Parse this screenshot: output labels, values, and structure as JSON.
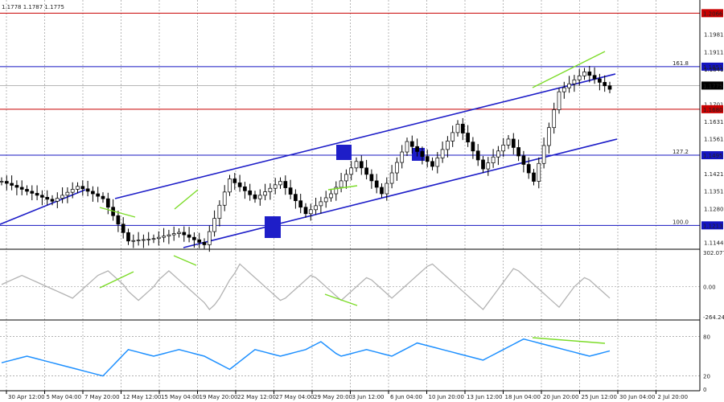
{
  "header": {
    "ohlc_text": "1.1778 1.1787 1.1775"
  },
  "colors": {
    "background": "#ffffff",
    "candles": "#000000",
    "channel": "#1e1ec8",
    "level_blue": "#1515c0",
    "level_red": "#c80000",
    "divergence": "#7ddc2a",
    "cci_line": "#b3b3b3",
    "rsi_line": "#1e90ff",
    "grid": "#9a9a9a"
  },
  "chart_data": [
    {
      "type": "candlestick",
      "instrument": "",
      "price_axis": {
        "ticks": [
          "1.2066",
          "1.1981",
          "1.1911",
          "1.1851",
          "1.1841",
          "1.1775",
          "1.1701",
          "1.1680",
          "1.1631",
          "1.1561",
          "1.1495",
          "1.1421",
          "1.1351",
          "1.1280",
          "1.1213",
          "1.1144"
        ],
        "range": [
          1.113,
          1.2106
        ]
      },
      "time_axis": {
        "ticks": [
          "30 Apr 12:00",
          "5 May 04:00",
          "7 May 20:00",
          "12 May 12:00",
          "15 May 04:00",
          "19 May 20:00",
          "22 May 12:00",
          "27 May 04:00",
          "29 May 20:00",
          "3 Jun 12:00",
          "6 Jun 04:00",
          "10 Jun 20:00",
          "13 Jun 12:00",
          "18 Jun 04:00",
          "20 Jun 20:00",
          "25 Jun 12:00",
          "30 Jun 04:00",
          "2 Jul 20:00"
        ]
      },
      "levels": [
        {
          "price": 1.2066,
          "label": "1.2066",
          "tag": "",
          "color": "red"
        },
        {
          "price": 1.1851,
          "label": "1.1851",
          "tag": "161.8",
          "color": "blue"
        },
        {
          "price": 1.1775,
          "label": "1.1775",
          "tag": "",
          "color": "current"
        },
        {
          "price": 1.168,
          "label": "1.1680",
          "tag": "",
          "color": "red"
        },
        {
          "price": 1.1495,
          "label": "1.1495",
          "tag": "127.2",
          "color": "blue"
        },
        {
          "price": 1.1213,
          "label": "1.1213",
          "tag": "100.0",
          "color": "blue"
        }
      ],
      "series_close": [
        1.139,
        1.1382,
        1.1374,
        1.1366,
        1.1358,
        1.135,
        1.1342,
        1.1334,
        1.1326,
        1.1318,
        1.131,
        1.1322,
        1.1334,
        1.1346,
        1.1358,
        1.137,
        1.136,
        1.135,
        1.134,
        1.133,
        1.132,
        1.1286,
        1.1252,
        1.1218,
        1.1184,
        1.115,
        1.1152,
        1.1154,
        1.1156,
        1.1158,
        1.116,
        1.1165,
        1.117,
        1.1175,
        1.118,
        1.1185,
        1.1175,
        1.1165,
        1.1155,
        1.1145,
        1.1135,
        1.1188,
        1.1241,
        1.1294,
        1.1347,
        1.14,
        1.1384,
        1.1368,
        1.1352,
        1.1336,
        1.132,
        1.1334,
        1.1348,
        1.1362,
        1.1376,
        1.139,
        1.1364,
        1.1338,
        1.1312,
        1.1286,
        1.126,
        1.1276,
        1.1292,
        1.1308,
        1.1324,
        1.134,
        1.1366,
        1.1392,
        1.1418,
        1.1444,
        1.147,
        1.1444,
        1.1418,
        1.1392,
        1.1366,
        1.134,
        1.1382,
        1.1424,
        1.1466,
        1.1508,
        1.155,
        1.153,
        1.151,
        1.149,
        1.147,
        1.145,
        1.1484,
        1.1518,
        1.1552,
        1.1586,
        1.162,
        1.1584,
        1.1548,
        1.1512,
        1.1476,
        1.144,
        1.1464,
        1.1488,
        1.1512,
        1.1536,
        1.156,
        1.1526,
        1.1492,
        1.1458,
        1.1424,
        1.139,
        1.1462,
        1.1534,
        1.1606,
        1.1678,
        1.175,
        1.1766,
        1.1782,
        1.1798,
        1.1814,
        1.183,
        1.1816,
        1.1802,
        1.1788,
        1.1774,
        1.176
      ],
      "annotations": [
        "divergence lines",
        "ascending channel",
        "support / resistance zones"
      ]
    },
    {
      "type": "line",
      "name": "",
      "axis_ticks": [
        "302.077",
        "0.00",
        "-264.246"
      ],
      "range": [
        -264.246,
        302.077
      ],
      "values": [
        20,
        40,
        60,
        80,
        100,
        80,
        60,
        40,
        20,
        0,
        -20,
        -40,
        -60,
        -80,
        -100,
        -60,
        -20,
        20,
        60,
        100,
        120,
        140,
        100,
        60,
        20,
        -40,
        -80,
        -120,
        -80,
        -40,
        0,
        60,
        100,
        140,
        100,
        60,
        20,
        -20,
        -60,
        -100,
        -140,
        -200,
        -160,
        -100,
        -20,
        60,
        120,
        200,
        160,
        120,
        80,
        40,
        0,
        -40,
        -80,
        -120,
        -100,
        -60,
        -20,
        20,
        60,
        100,
        80,
        40,
        0,
        -40,
        -80,
        -120,
        -80,
        -40,
        0,
        40,
        80,
        60,
        20,
        -20,
        -60,
        -100,
        -60,
        -20,
        20,
        60,
        100,
        140,
        180,
        200,
        160,
        120,
        80,
        40,
        0,
        -40,
        -80,
        -120,
        -160,
        -200,
        -140,
        -80,
        -20,
        40,
        100,
        160,
        140,
        100,
        60,
        20,
        -20,
        -60,
        -100,
        -140,
        -180,
        -120,
        -60,
        0,
        40,
        80,
        60,
        20,
        -20,
        -60,
        -100
      ]
    },
    {
      "type": "line",
      "name": "",
      "axis_ticks": [
        "80",
        "20",
        "0"
      ],
      "range": [
        0,
        100
      ],
      "values": [
        40,
        42,
        44,
        46,
        48,
        50,
        48,
        46,
        44,
        42,
        40,
        38,
        36,
        34,
        32,
        30,
        28,
        26,
        24,
        22,
        20,
        28,
        36,
        44,
        52,
        60,
        58,
        56,
        54,
        52,
        50,
        52,
        54,
        56,
        58,
        60,
        58,
        56,
        54,
        52,
        50,
        46,
        42,
        38,
        34,
        30,
        36,
        42,
        48,
        54,
        60,
        58,
        56,
        54,
        52,
        50,
        52,
        54,
        56,
        58,
        60,
        64,
        68,
        72,
        66,
        60,
        54,
        50,
        52,
        54,
        56,
        58,
        60,
        58,
        56,
        54,
        52,
        50,
        54,
        58,
        62,
        66,
        70,
        68,
        66,
        64,
        62,
        60,
        58,
        56,
        54,
        52,
        50,
        48,
        46,
        44,
        48,
        52,
        56,
        60,
        64,
        68,
        72,
        76,
        74,
        72,
        70,
        68,
        66,
        64,
        62,
        60,
        58,
        56,
        54,
        52,
        50,
        52,
        54,
        56,
        58
      ]
    }
  ]
}
